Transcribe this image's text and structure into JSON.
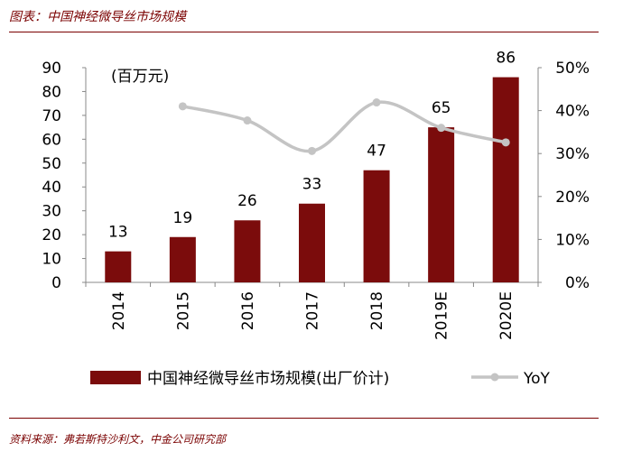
{
  "caption": "图表：中国神经微导丝市场规模",
  "source": "资料来源：弗若斯特沙利文，中金公司研究部",
  "chart_data": {
    "type": "bar",
    "categories": [
      "2014",
      "2015",
      "2016",
      "2017",
      "2018",
      "2019E",
      "2020E"
    ],
    "series": [
      {
        "name": "中国神经微导丝市场规模(出厂价计)",
        "type": "bar",
        "axis": "left",
        "color": "#7b0c0c",
        "values": [
          13,
          19,
          26,
          33,
          47,
          65,
          86
        ],
        "labels": [
          "13",
          "19",
          "26",
          "33",
          "47",
          "65",
          "86"
        ]
      },
      {
        "name": "YoY",
        "type": "line",
        "axis": "right",
        "color": "#c4c4c4",
        "values": [
          null,
          0.41,
          0.377,
          0.306,
          0.419,
          0.36,
          0.326
        ]
      }
    ],
    "unit_label": "(百万元)",
    "y_left": {
      "min": 0,
      "max": 90,
      "ticks": [
        "0",
        "10",
        "20",
        "30",
        "40",
        "50",
        "60",
        "70",
        "80",
        "90"
      ]
    },
    "y_right": {
      "min": 0,
      "max": 0.5,
      "ticks": [
        "0%",
        "10%",
        "20%",
        "30%",
        "40%",
        "50%"
      ]
    },
    "legend_position": "bottom"
  }
}
